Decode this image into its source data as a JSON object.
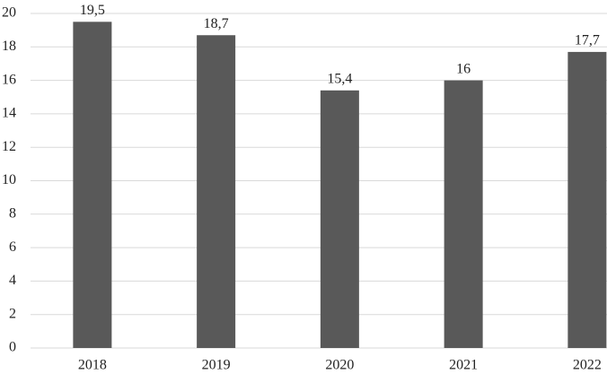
{
  "chart_data": {
    "type": "bar",
    "categories": [
      "2018",
      "2019",
      "2020",
      "2021",
      "2022"
    ],
    "values": [
      19.5,
      18.7,
      15.4,
      16,
      17.7
    ],
    "value_labels": [
      "19,5",
      "18,7",
      "15,4",
      "16",
      "17,7"
    ],
    "color": "#595959",
    "ylim": [
      0,
      20
    ],
    "yticks": [
      0,
      2,
      4,
      6,
      8,
      10,
      12,
      14,
      16,
      18,
      20
    ],
    "grid": true
  }
}
